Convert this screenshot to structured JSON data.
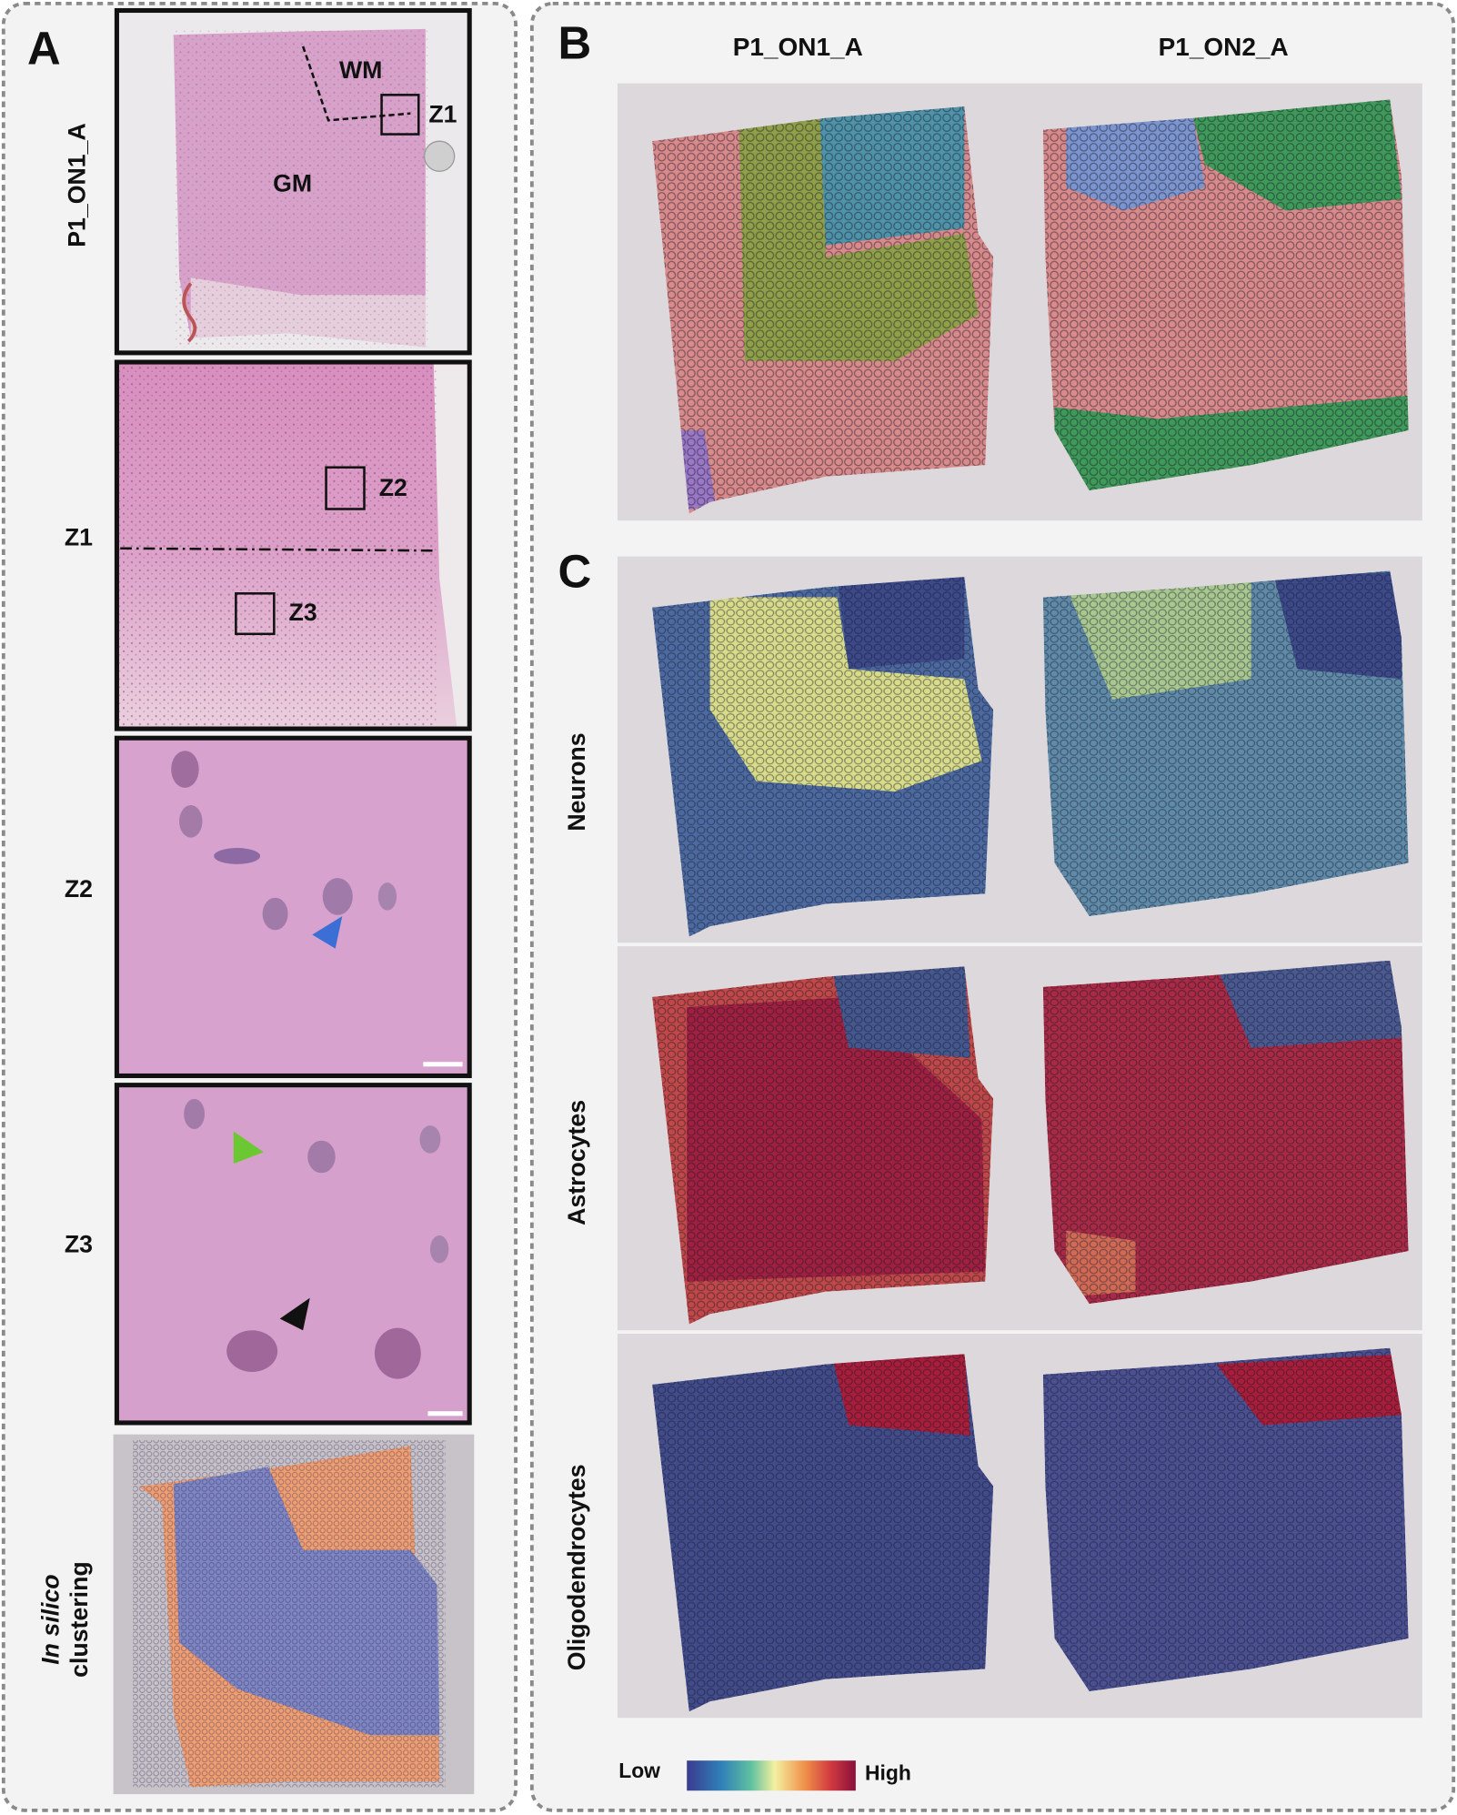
{
  "panels": {
    "A": {
      "label": "A",
      "sample": "P1_ON1_A",
      "regions": [
        "WM",
        "GM"
      ],
      "zoom_labels": [
        "Z1",
        "Z2",
        "Z3"
      ],
      "row_labels": [
        "Z1",
        "Z2",
        "Z3"
      ],
      "clustering_label": {
        "italic": "In silico",
        "rest": "clustering"
      }
    },
    "B": {
      "label": "B",
      "columns": [
        "P1_ON1_A",
        "P1_ON2_A"
      ]
    },
    "C": {
      "label": "C",
      "rows": [
        "Neurons",
        "Astrocytes",
        "Oligodendrocytes"
      ],
      "colorbar": {
        "low": "Low",
        "high": "High"
      }
    }
  }
}
